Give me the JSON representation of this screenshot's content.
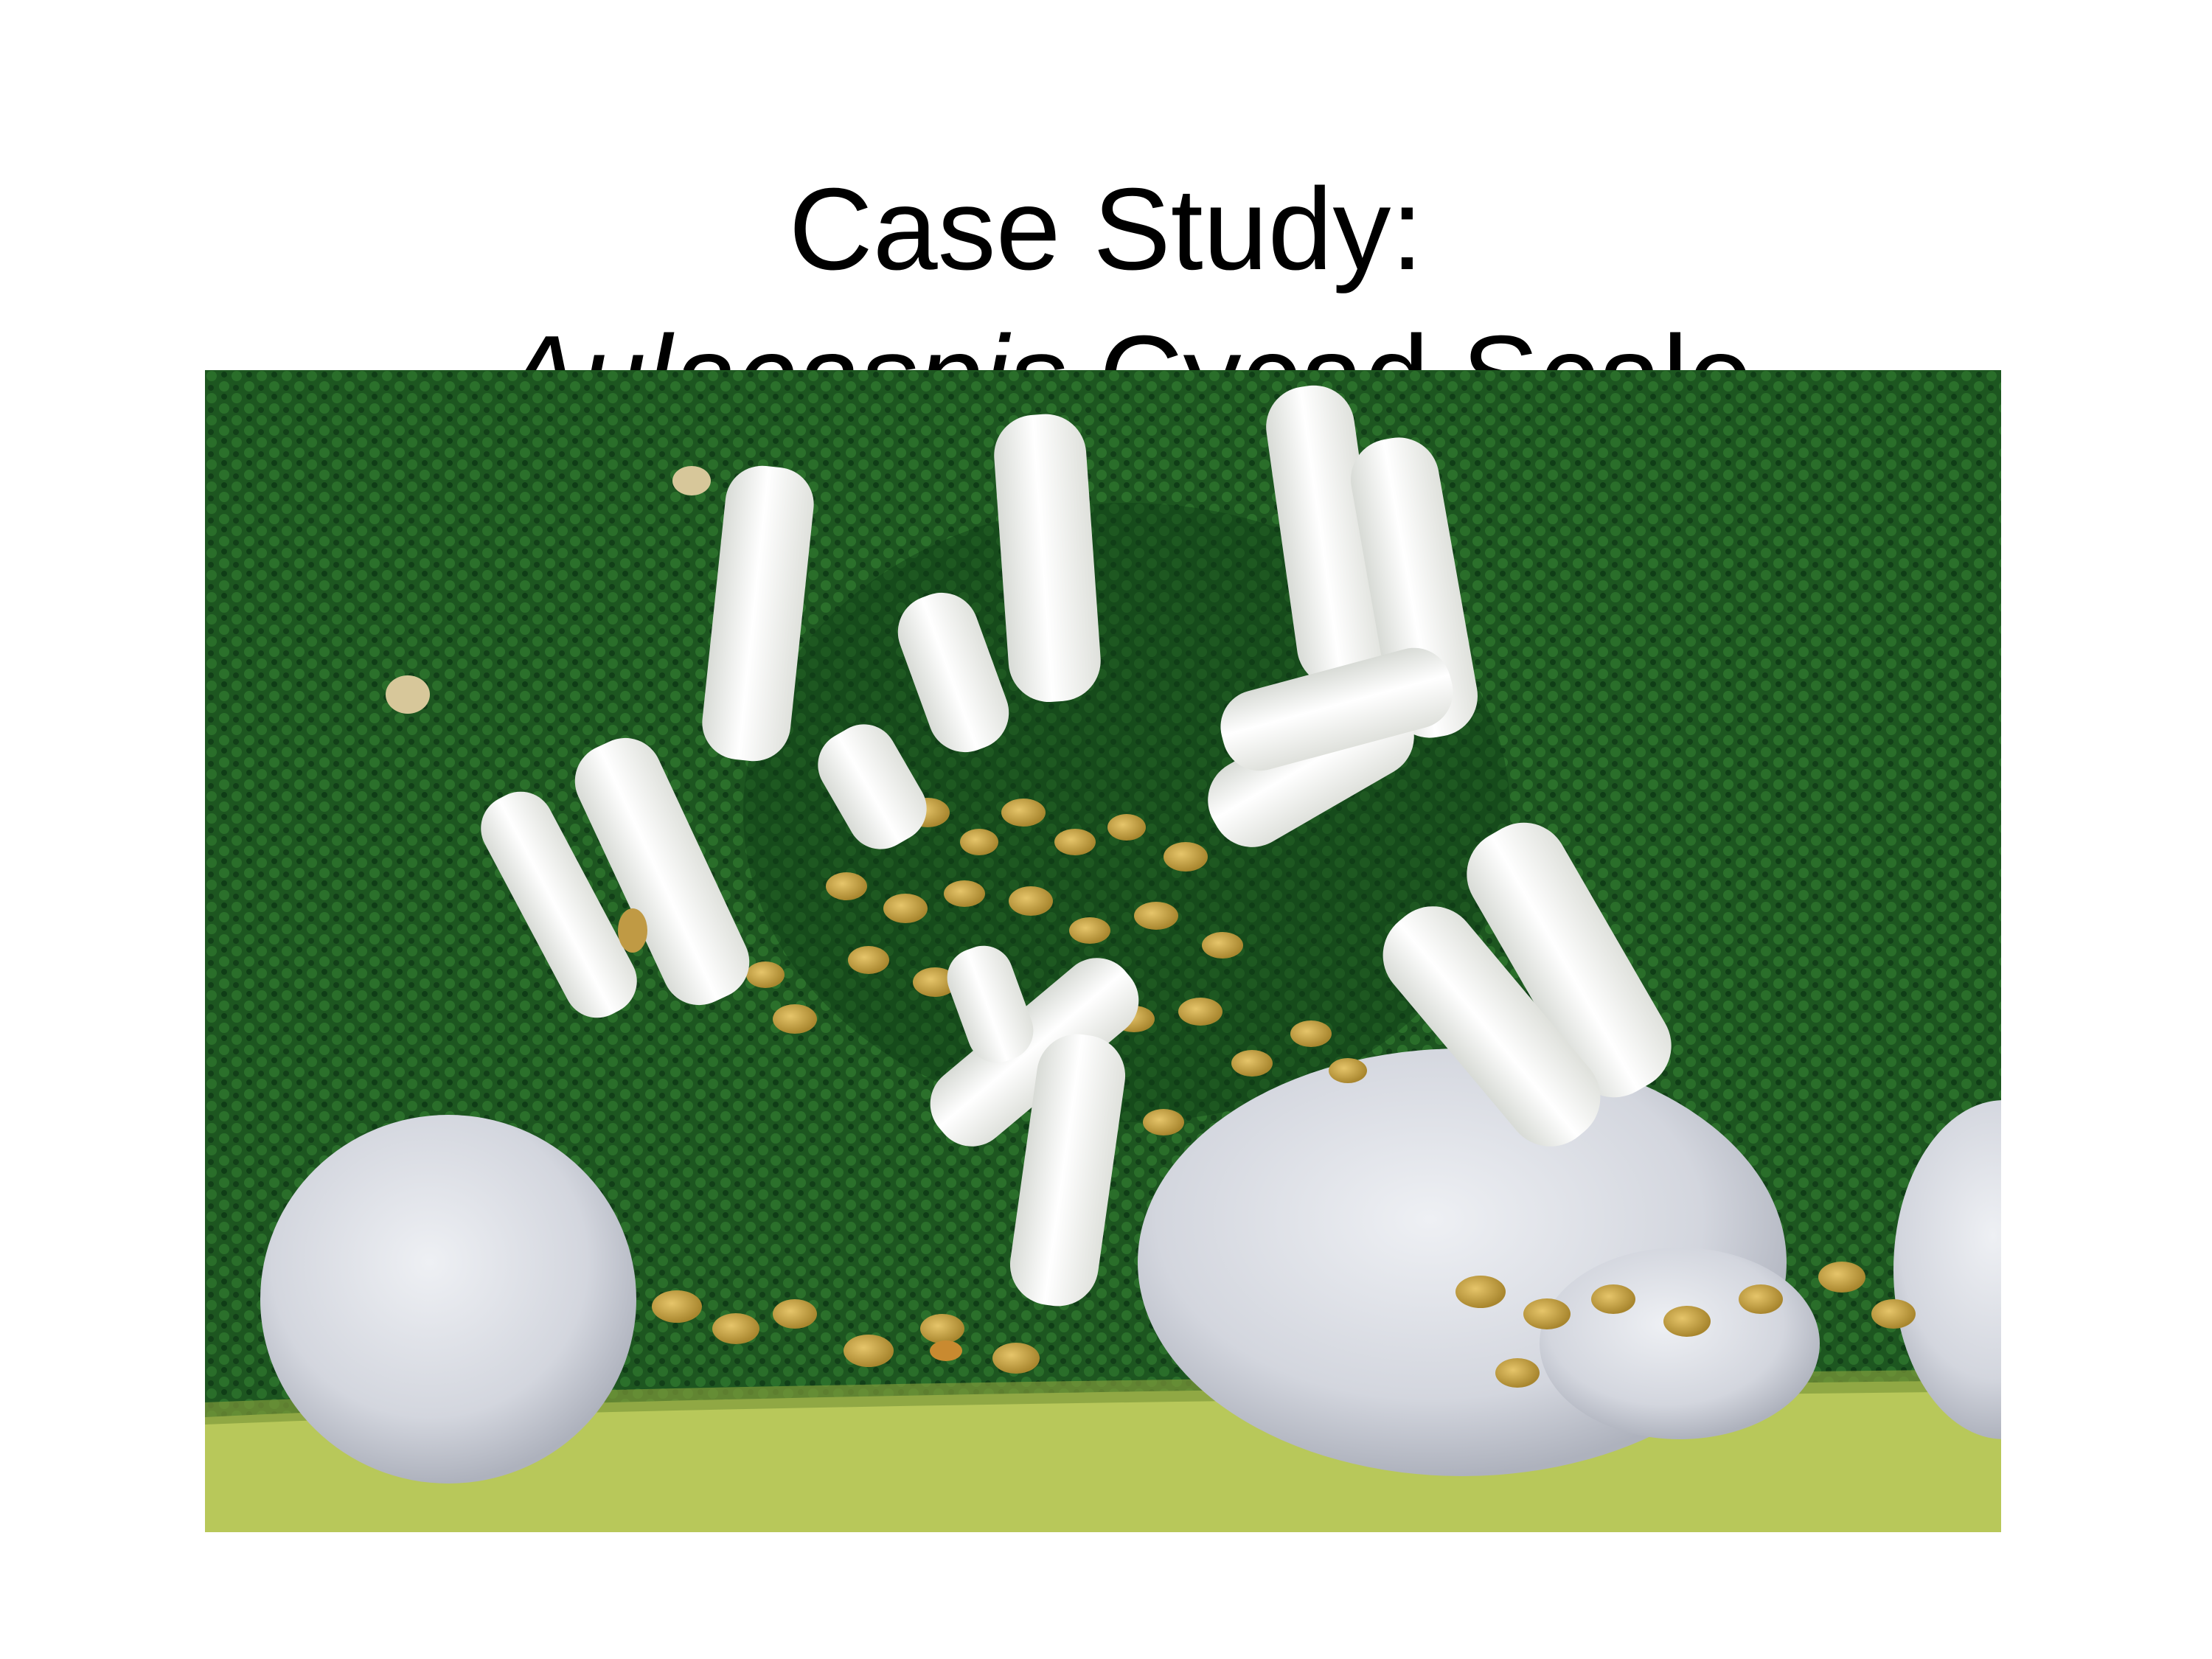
{
  "slide": {
    "title_line1": "Case Study:",
    "title_line2_italic": "Aulacaspis",
    "title_line2_rest": " Cycad Scale"
  },
  "photo": {
    "subject": "Aulacaspis cycad scale insects on a cycad leaf",
    "colors": {
      "leaf": "#1f5a22",
      "leaf_dark": "#0f3d16",
      "leaf_edge": "#b8c85a",
      "scale_white": "#f4f5f2",
      "female_cover": "#dcdfe6",
      "crawlers": "#c8a646"
    }
  }
}
